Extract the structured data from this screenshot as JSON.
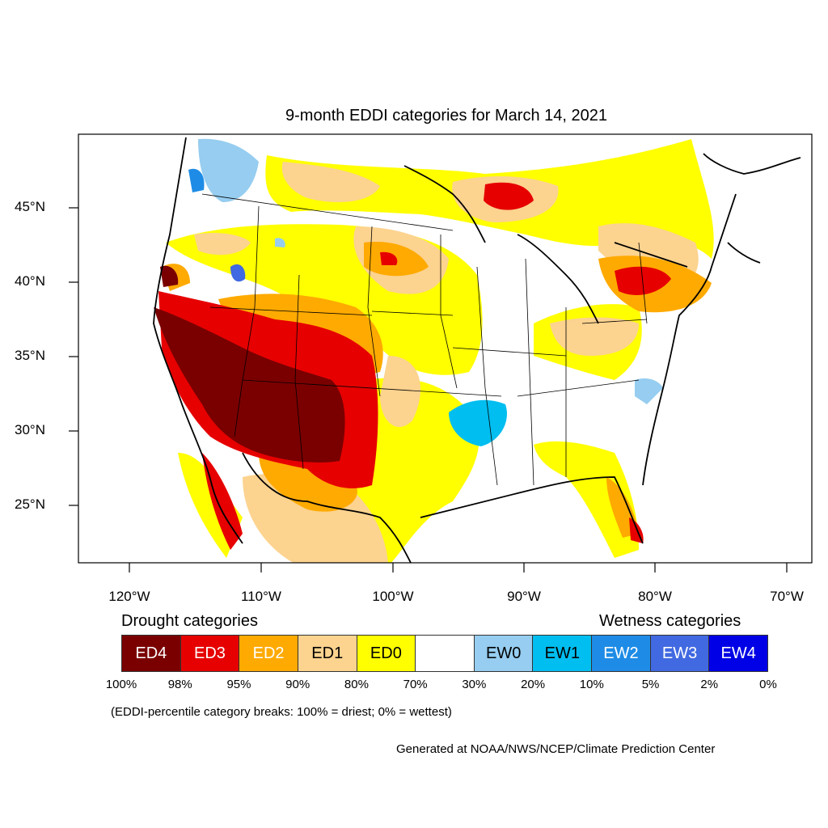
{
  "title": "9-month EDDI categories for March 14, 2021",
  "lat_labels": [
    "45°N",
    "40°N",
    "35°N",
    "30°N",
    "25°N"
  ],
  "lon_labels": [
    "120°W",
    "110°W",
    "100°W",
    "90°W",
    "80°W",
    "70°W"
  ],
  "legend": {
    "drought_heading": "Drought categories",
    "wetness_heading": "Wetness categories",
    "categories": [
      {
        "label": "ED4",
        "color": "#7a0000",
        "text_color": "#ffffff"
      },
      {
        "label": "ED3",
        "color": "#e60000",
        "text_color": "#ffffff"
      },
      {
        "label": "ED2",
        "color": "#ffaa00",
        "text_color": "#ffffff"
      },
      {
        "label": "ED1",
        "color": "#fcd38f",
        "text_color": "#000000"
      },
      {
        "label": "ED0",
        "color": "#ffff00",
        "text_color": "#000000"
      },
      {
        "label": "",
        "color": "#ffffff",
        "text_color": "#000000"
      },
      {
        "label": "EW0",
        "color": "#96cdf0",
        "text_color": "#000000"
      },
      {
        "label": "EW1",
        "color": "#00bef0",
        "text_color": "#000000"
      },
      {
        "label": "EW2",
        "color": "#1e8ce6",
        "text_color": "#ffffff"
      },
      {
        "label": "EW3",
        "color": "#4169e1",
        "text_color": "#ffffff"
      },
      {
        "label": "EW4",
        "color": "#0000e6",
        "text_color": "#ffffff"
      }
    ],
    "percentiles": [
      "100%",
      "98%",
      "95%",
      "90%",
      "80%",
      "70%",
      "30%",
      "20%",
      "10%",
      "5%",
      "2%",
      "0%"
    ]
  },
  "note": "(EDDI-percentile category breaks: 100% = driest; 0% = wettest)",
  "credit": "Generated at NOAA/NWS/NCEP/Climate Prediction Center"
}
